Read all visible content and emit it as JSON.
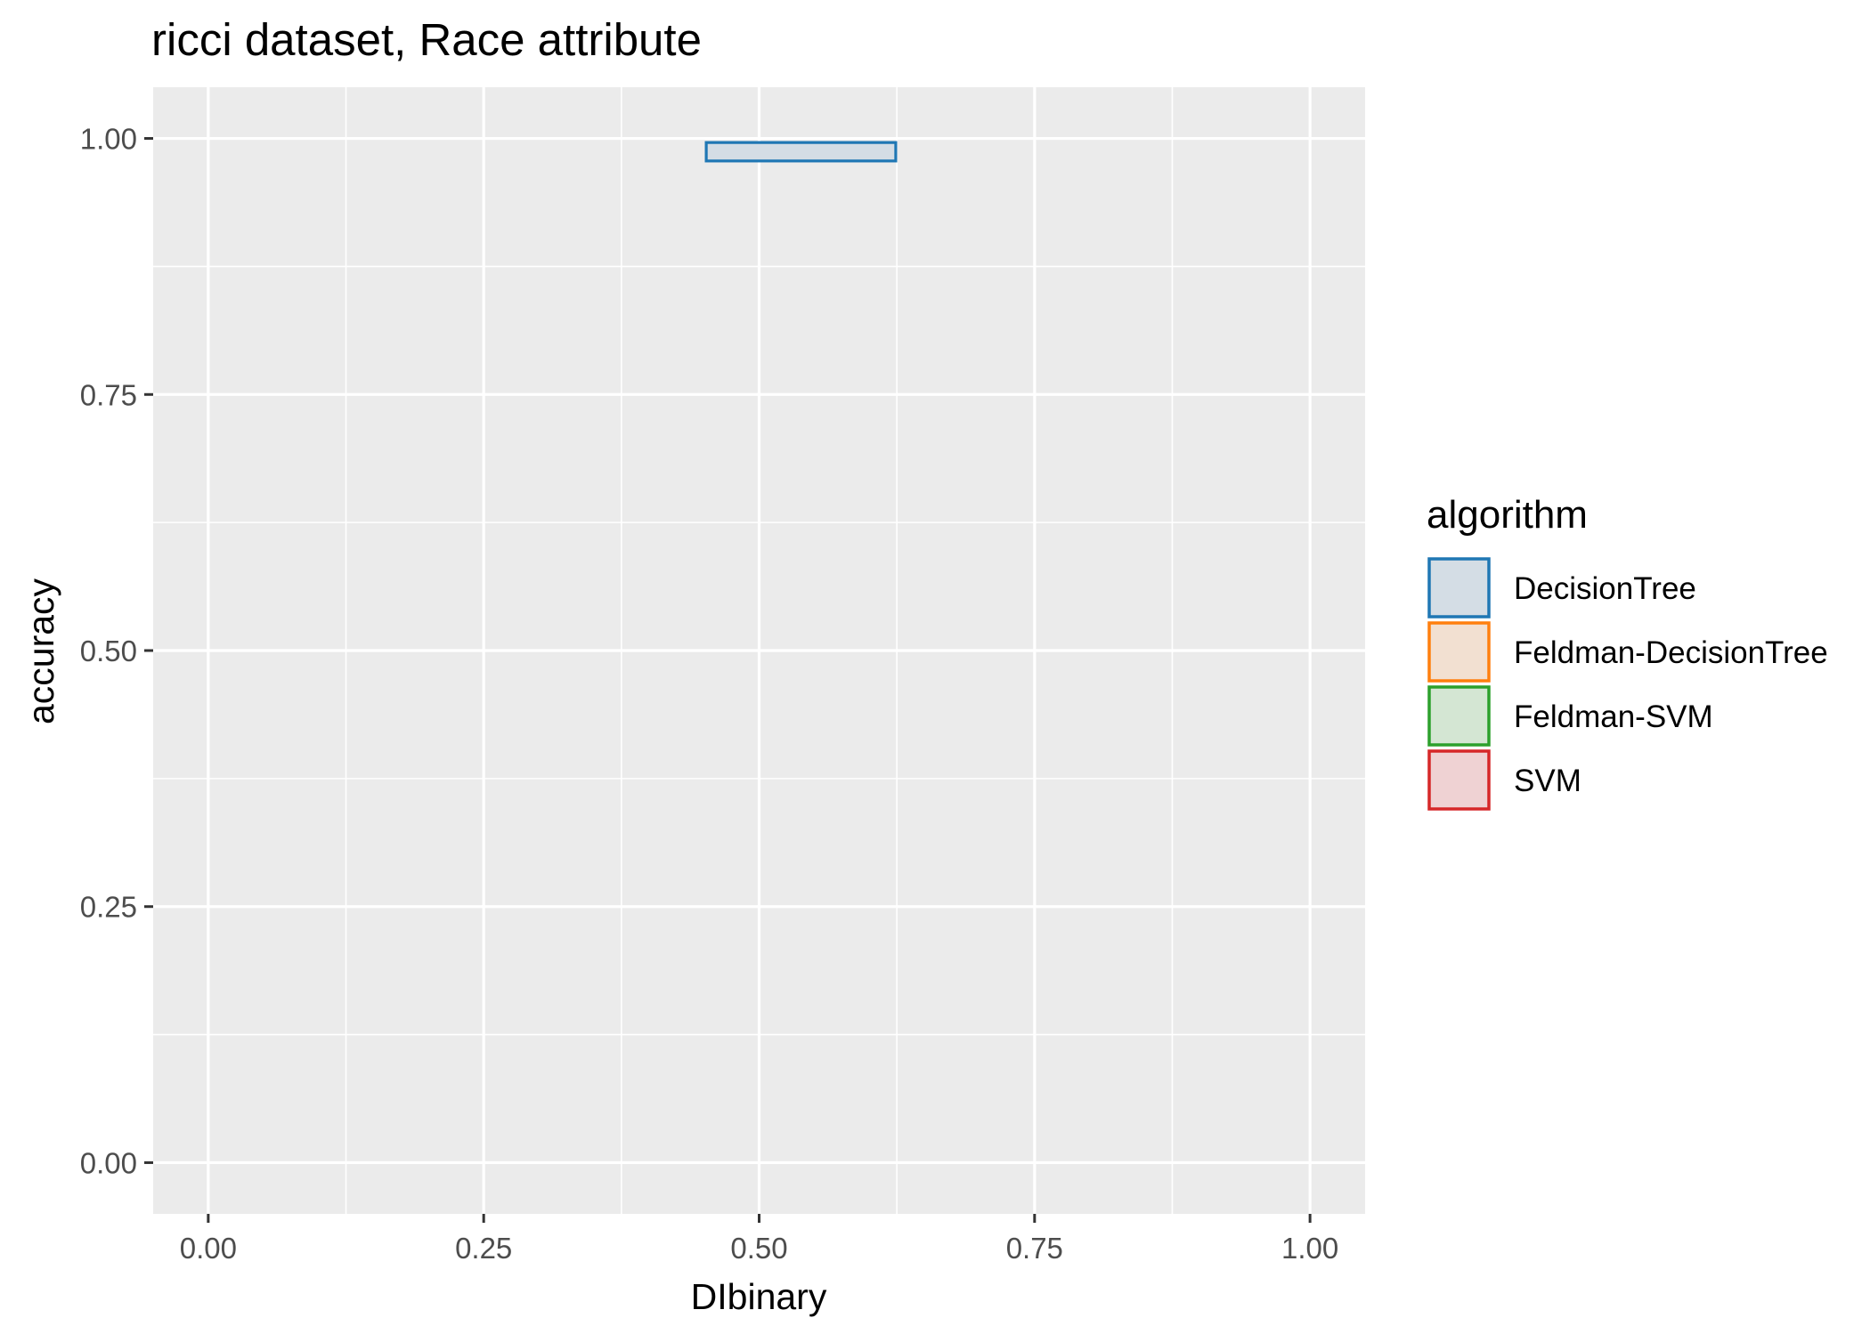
{
  "chart_data": {
    "type": "rect",
    "title": "ricci dataset, Race attribute",
    "xlabel": "DIbinary",
    "ylabel": "accuracy",
    "xlim": [
      -0.05,
      1.05
    ],
    "ylim": [
      -0.05,
      1.05
    ],
    "x_ticks": [
      {
        "value": 0.0,
        "label": "0.00"
      },
      {
        "value": 0.25,
        "label": "0.25"
      },
      {
        "value": 0.5,
        "label": "0.50"
      },
      {
        "value": 0.75,
        "label": "0.75"
      },
      {
        "value": 1.0,
        "label": "1.00"
      }
    ],
    "y_ticks": [
      {
        "value": 0.0,
        "label": "0.00"
      },
      {
        "value": 0.25,
        "label": "0.25"
      },
      {
        "value": 0.5,
        "label": "0.50"
      },
      {
        "value": 0.75,
        "label": "0.75"
      },
      {
        "value": 1.0,
        "label": "1.00"
      }
    ],
    "x_minor": [
      0.125,
      0.375,
      0.625,
      0.875
    ],
    "y_minor": [
      0.125,
      0.375,
      0.625,
      0.875
    ],
    "grid": true,
    "panel_background": "#ebebeb",
    "legend": {
      "title": "algorithm",
      "placement": "right",
      "entries": [
        {
          "label": "DecisionTree",
          "stroke": "#1f77b4",
          "fill": "#d4dde5"
        },
        {
          "label": "Feldman-DecisionTree",
          "stroke": "#ff7f0e",
          "fill": "#f2e0d1"
        },
        {
          "label": "Feldman-SVM",
          "stroke": "#2ca02c",
          "fill": "#d4e6d3"
        },
        {
          "label": "SVM",
          "stroke": "#d62728",
          "fill": "#efd2d3"
        }
      ]
    },
    "rects": [
      {
        "series": "DecisionTree",
        "xmin": 0.452,
        "xmax": 0.624,
        "ymin": 0.978,
        "ymax": 0.996
      }
    ]
  }
}
